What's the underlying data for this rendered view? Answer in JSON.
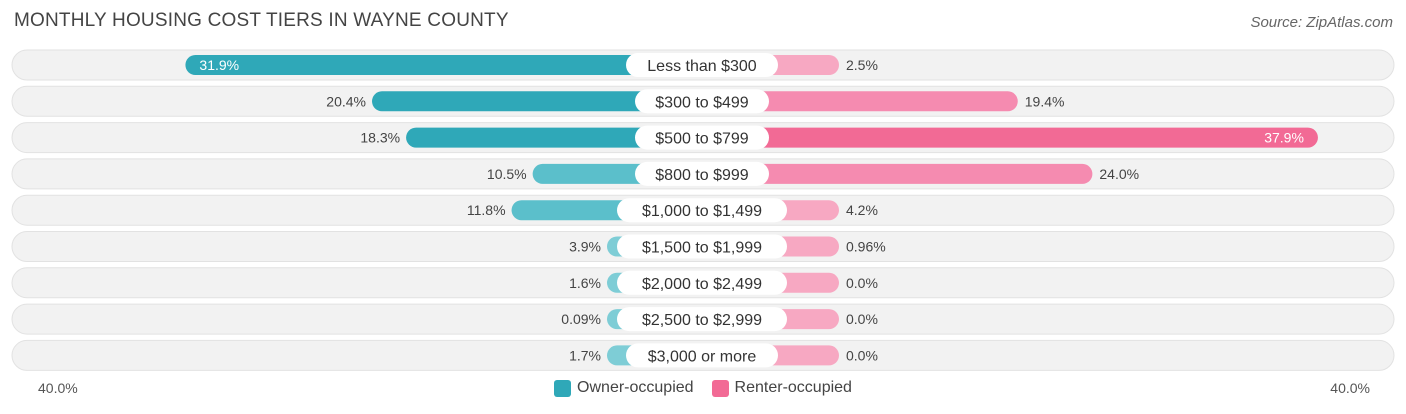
{
  "title": "MONTHLY HOUSING COST TIERS IN WAYNE COUNTY",
  "source": "Source: ZipAtlas.com",
  "colors": {
    "owner": "#2fa8b8",
    "owner_light": "#7ecdd6",
    "renter": "#f26a95",
    "renter_light": "#f7a8c2",
    "row_bg": "#f2f2f2"
  },
  "axis": {
    "left_label": "40.0%",
    "right_label": "40.0%"
  },
  "legend": [
    {
      "label": "Owner-occupied",
      "color": "#2fa8b8"
    },
    {
      "label": "Renter-occupied",
      "color": "#f26a95"
    }
  ],
  "chart_data": {
    "type": "bar",
    "orientation": "diverging-horizontal",
    "title": "MONTHLY HOUSING COST TIERS IN WAYNE COUNTY",
    "xlim": [
      -40,
      40
    ],
    "categories": [
      "Less than $300",
      "$300 to $499",
      "$500 to $799",
      "$800 to $999",
      "$1,000 to $1,499",
      "$1,500 to $1,999",
      "$2,000 to $2,499",
      "$2,500 to $2,999",
      "$3,000 or more"
    ],
    "series": [
      {
        "name": "Owner-occupied",
        "values": [
          31.9,
          20.4,
          18.3,
          10.5,
          11.8,
          3.9,
          1.6,
          0.09,
          1.7
        ],
        "labels": [
          "31.9%",
          "20.4%",
          "18.3%",
          "10.5%",
          "11.8%",
          "3.9%",
          "1.6%",
          "0.09%",
          "1.7%"
        ]
      },
      {
        "name": "Renter-occupied",
        "values": [
          2.5,
          19.4,
          37.9,
          24.0,
          4.2,
          0.96,
          0.0,
          0.0,
          0.0
        ],
        "labels": [
          "2.5%",
          "19.4%",
          "37.9%",
          "24.0%",
          "4.2%",
          "0.96%",
          "0.0%",
          "0.0%",
          "0.0%"
        ]
      }
    ]
  }
}
